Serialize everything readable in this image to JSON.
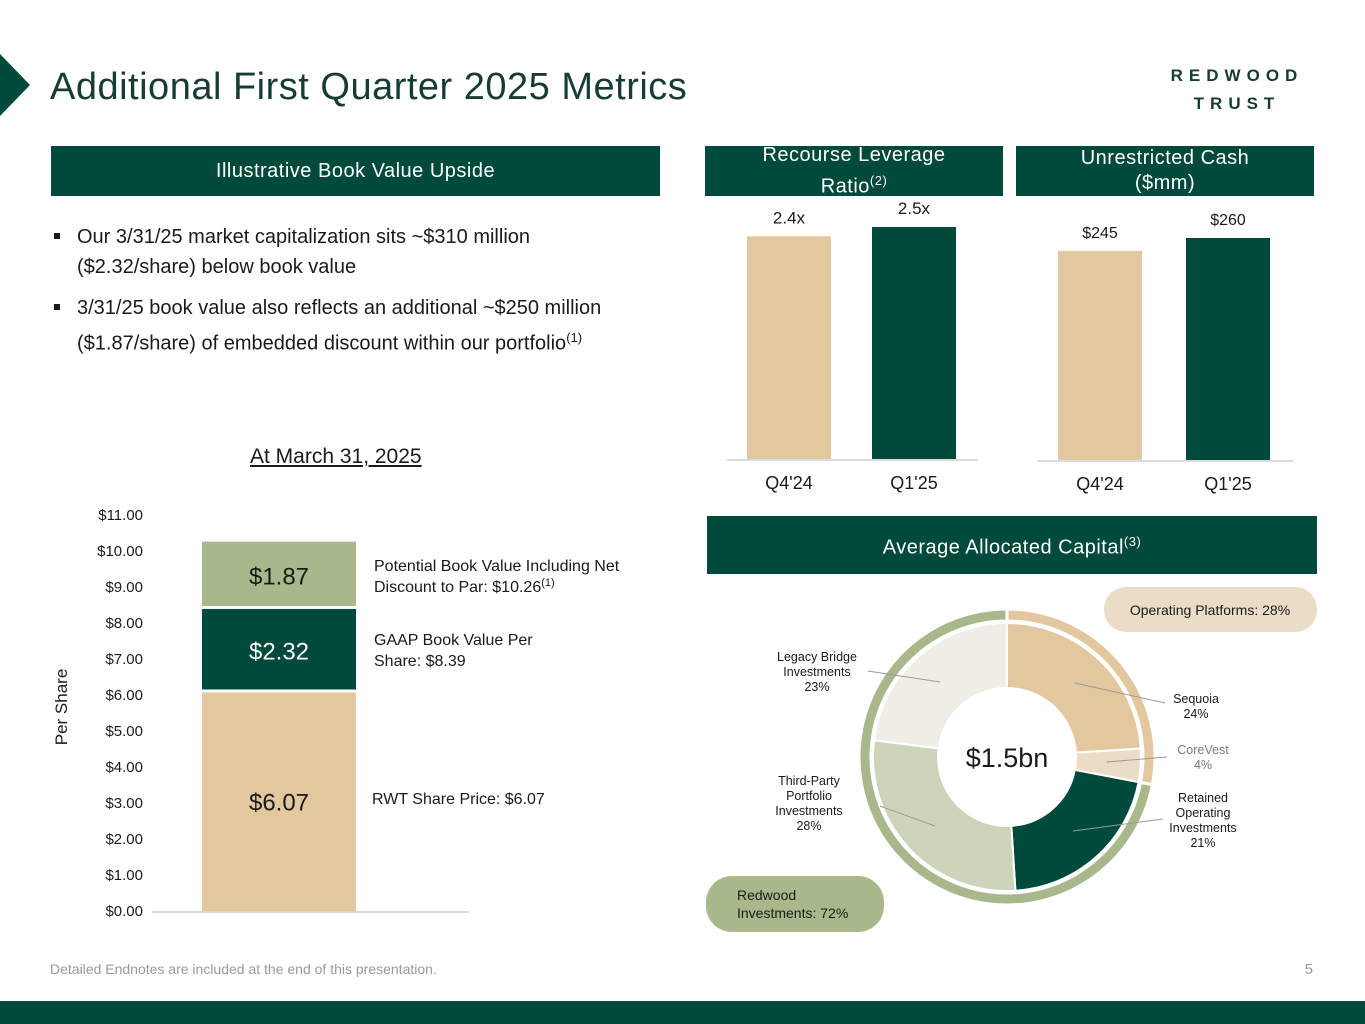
{
  "header": {
    "title": "Additional First Quarter 2025 Metrics",
    "logo_line1": "REDWOOD",
    "logo_line2": "TRUST"
  },
  "book_value_section": {
    "banner": "Illustrative Book Value Upside",
    "bullet1": "Our 3/31/25 market capitalization sits ~$310 million ($2.32/share) below book value",
    "bullet2_text": " 3/31/25 book value also reflects an additional ~$250 million ($1.87/share) of embedded discount within our portfolio",
    "bullet2_note": "(1)",
    "subheading": "At March 31, 2025"
  },
  "leverage_section": {
    "banner": "Recourse Leverage Ratio",
    "banner_note": "(2)"
  },
  "cash_section": {
    "banner": "Unrestricted Cash ($mm)"
  },
  "capital_section": {
    "banner": "Average Allocated Capital",
    "banner_note": "(3)"
  },
  "colors": {
    "dark_green": "#004a3b",
    "tan": "#e2c79f",
    "sage": "#a9b88a",
    "light_sage": "#ccd4ba",
    "off_white": "#eeeee6",
    "light_tan": "#ebdcc7"
  },
  "chart_data": [
    {
      "type": "bar",
      "stacked": true,
      "title": "At March 31, 2025",
      "ylabel": "Per Share",
      "ylim": [
        0,
        11
      ],
      "yticks": [
        "$0.00",
        "$1.00",
        "$2.00",
        "$3.00",
        "$4.00",
        "$5.00",
        "$6.00",
        "$7.00",
        "$8.00",
        "$9.00",
        "$10.00",
        "$11.00"
      ],
      "segments": [
        {
          "value": 6.07,
          "label": "$6.07",
          "annotation": "RWT Share Price: $6.07"
        },
        {
          "value": 2.32,
          "label": "$2.32",
          "annotation_lines": [
            "GAAP Book Value Per",
            "Share: $8.39"
          ]
        },
        {
          "value": 1.87,
          "label": "$1.87",
          "annotation_lines": [
            "Potential Book Value Including Net",
            "Discount to Par: $10.26"
          ],
          "annotation_note": "(1)"
        }
      ]
    },
    {
      "type": "bar",
      "title": "Recourse Leverage Ratio",
      "categories": [
        "Q4'24",
        "Q1'25"
      ],
      "values": [
        2.4,
        2.5
      ],
      "labels": [
        "2.4x",
        "2.5x"
      ]
    },
    {
      "type": "bar",
      "title": "Unrestricted Cash ($mm)",
      "categories": [
        "Q4'24",
        "Q1'25"
      ],
      "values": [
        245,
        260
      ],
      "labels": [
        "$245",
        "$260"
      ]
    },
    {
      "type": "pie",
      "title": "Average Allocated Capital",
      "center_label": "$1.5bn",
      "slices": [
        {
          "name": "Sequoia",
          "value": 24,
          "label_lines": [
            "Sequoia",
            "24%"
          ]
        },
        {
          "name": "CoreVest",
          "value": 4,
          "label_lines": [
            "CoreVest",
            "4%"
          ]
        },
        {
          "name": "Retained Operating Investments",
          "value": 21,
          "label_lines": [
            "Retained",
            "Operating",
            "Investments",
            "21%"
          ]
        },
        {
          "name": "Third-Party Portfolio Investments",
          "value": 28,
          "label_lines": [
            "Third-Party",
            "Portfolio",
            "Investments",
            "28%"
          ]
        },
        {
          "name": "Legacy Bridge Investments",
          "value": 23,
          "label_lines": [
            "Legacy Bridge",
            "Investments",
            "23%"
          ]
        }
      ],
      "outer_ring": [
        {
          "name": "Operating Platforms",
          "value": 28,
          "label": "Operating Platforms: 28%"
        },
        {
          "name": "Redwood Investments",
          "value": 72,
          "label_lines": [
            "Redwood",
            "Investments: 72%"
          ]
        }
      ]
    }
  ],
  "footer": {
    "endnote": "Detailed Endnotes are included at the end of this presentation.",
    "page_number": "5"
  }
}
